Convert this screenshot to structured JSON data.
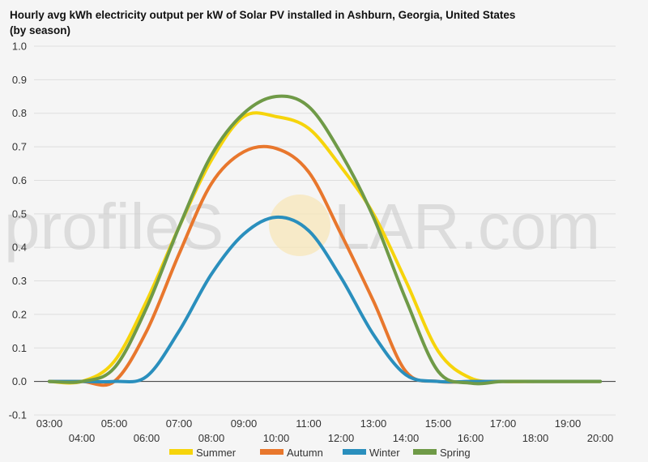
{
  "chart_data": {
    "type": "line",
    "title": "Hourly avg kWh electricity output per kW of Solar PV installed in Ashburn, Georgia, United States (by season)",
    "xlabel": "",
    "ylabel": "",
    "x": [
      "03:00",
      "04:00",
      "05:00",
      "06:00",
      "07:00",
      "08:00",
      "09:00",
      "10:00",
      "11:00",
      "12:00",
      "13:00",
      "14:00",
      "15:00",
      "16:00",
      "17:00",
      "18:00",
      "19:00",
      "20:00"
    ],
    "ylim": [
      -0.1,
      1.0
    ],
    "yticks": [
      "-0.1",
      "0.0",
      "0.1",
      "0.2",
      "0.3",
      "0.4",
      "0.5",
      "0.6",
      "0.7",
      "0.8",
      "0.9",
      "1.0"
    ],
    "grid": true,
    "legend_position": "bottom",
    "series": [
      {
        "name": "Summer",
        "color": "#f6d40b",
        "values": [
          0.0,
          0.0,
          0.06,
          0.24,
          0.46,
          0.66,
          0.79,
          0.79,
          0.755,
          0.64,
          0.5,
          0.3,
          0.09,
          0.01,
          0.0,
          0.0,
          0.0,
          0.0
        ]
      },
      {
        "name": "Autumn",
        "color": "#e8772d",
        "values": [
          0.0,
          0.0,
          0.0,
          0.15,
          0.38,
          0.59,
          0.685,
          0.695,
          0.625,
          0.44,
          0.24,
          0.03,
          0.0,
          0.0,
          0.0,
          0.0,
          0.0,
          0.0
        ]
      },
      {
        "name": "Winter",
        "color": "#2a8fbd",
        "values": [
          0.0,
          0.0,
          0.0,
          0.015,
          0.15,
          0.32,
          0.44,
          0.49,
          0.45,
          0.31,
          0.14,
          0.02,
          0.0,
          0.0,
          0.0,
          0.0,
          0.0,
          0.0
        ]
      },
      {
        "name": "Spring",
        "color": "#6f9a47",
        "values": [
          0.0,
          0.0,
          0.04,
          0.22,
          0.46,
          0.675,
          0.8,
          0.85,
          0.82,
          0.68,
          0.49,
          0.245,
          0.03,
          -0.005,
          0.0,
          0.0,
          0.0,
          0.0
        ]
      }
    ]
  },
  "watermark": {
    "left": "profileS",
    "right": "LAR.com"
  }
}
